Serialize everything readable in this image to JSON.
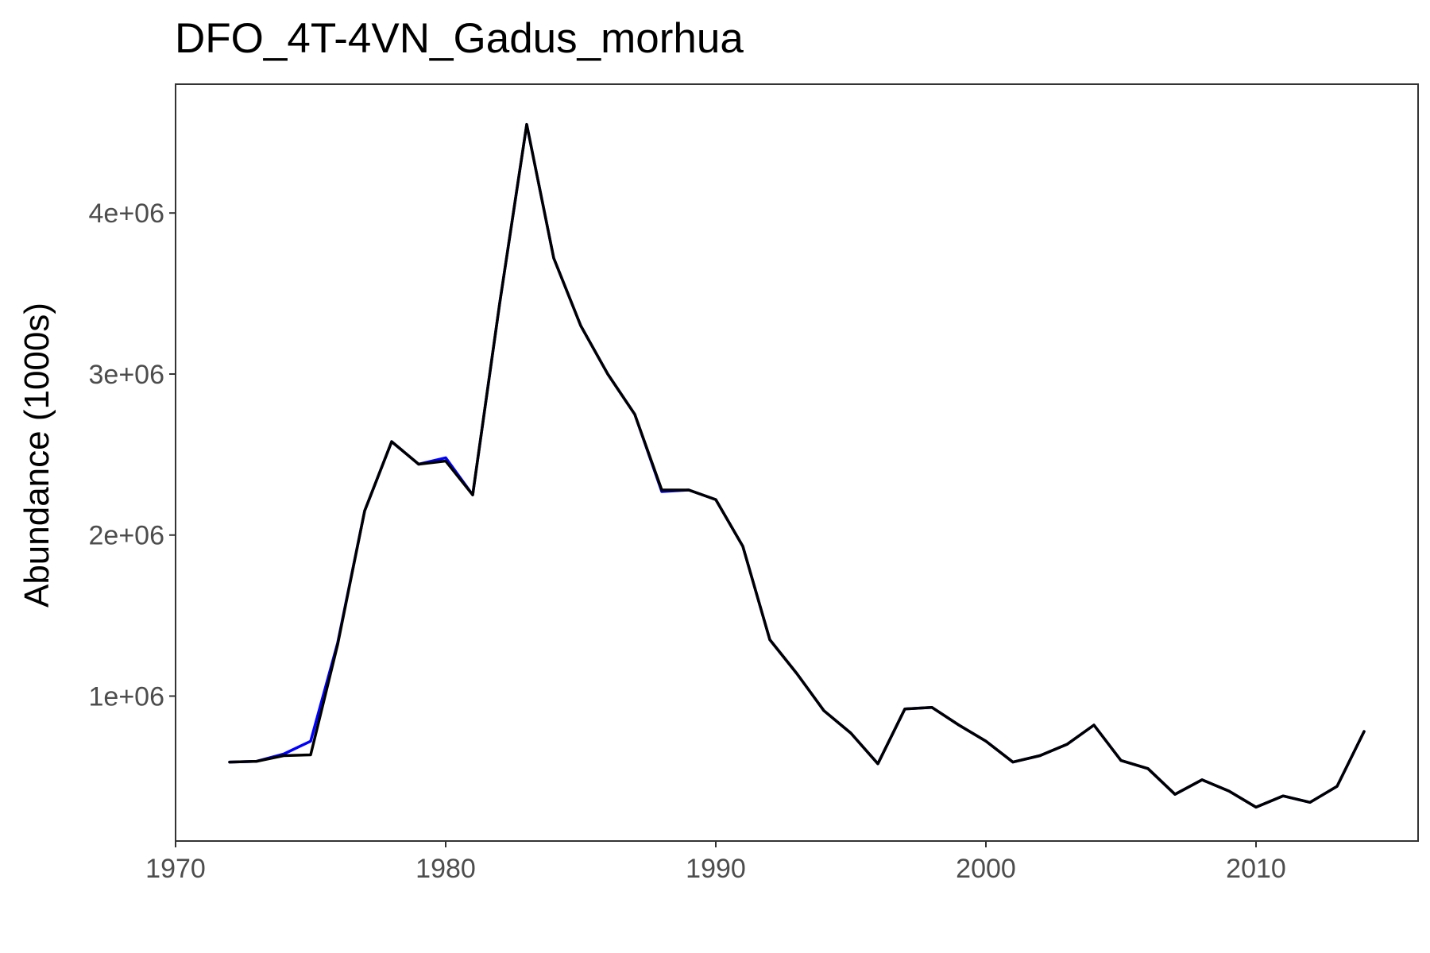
{
  "chart_data": {
    "type": "line",
    "title": "DFO_4T-4VN_Gadus_morhua",
    "xlabel": "",
    "ylabel": "Abundance (1000s)",
    "xlim": [
      1970,
      2016
    ],
    "ylim": [
      100000,
      4800000
    ],
    "x_ticks": [
      1970,
      1980,
      1990,
      2000,
      2010
    ],
    "y_ticks": [
      1000000,
      2000000,
      3000000,
      4000000
    ],
    "y_tick_labels": [
      "1e+06",
      "2e+06",
      "3e+06",
      "4e+06"
    ],
    "grid": false,
    "legend": "none",
    "x": [
      1972,
      1973,
      1974,
      1975,
      1976,
      1977,
      1978,
      1979,
      1980,
      1981,
      1982,
      1983,
      1984,
      1985,
      1986,
      1987,
      1988,
      1989,
      1990,
      1991,
      1992,
      1993,
      1994,
      1995,
      1996,
      1997,
      1998,
      1999,
      2000,
      2001,
      2002,
      2003,
      2004,
      2005,
      2006,
      2007,
      2008,
      2009,
      2010,
      2011,
      2012,
      2013,
      2014
    ],
    "series": [
      {
        "color": "#0000ff",
        "values": [
          590000,
          595000,
          640000,
          720000,
          1330000,
          2150000,
          2580000,
          2440000,
          2480000,
          2250000,
          3440000,
          4550000,
          3720000,
          3300000,
          3000000,
          2750000,
          2270000,
          2280000,
          2220000,
          1930000,
          1350000,
          1140000,
          910000,
          770000,
          580000,
          920000,
          930000,
          820000,
          720000,
          590000,
          630000,
          700000,
          820000,
          600000,
          550000,
          390000,
          480000,
          410000,
          310000,
          380000,
          340000,
          440000,
          780000
        ]
      },
      {
        "color": "#000000",
        "values": [
          590000,
          595000,
          630000,
          635000,
          1320000,
          2150000,
          2580000,
          2440000,
          2460000,
          2250000,
          3440000,
          4550000,
          3720000,
          3300000,
          3000000,
          2750000,
          2280000,
          2280000,
          2220000,
          1930000,
          1350000,
          1140000,
          910000,
          770000,
          580000,
          920000,
          930000,
          820000,
          720000,
          590000,
          630000,
          700000,
          820000,
          600000,
          550000,
          390000,
          480000,
          410000,
          310000,
          380000,
          340000,
          440000,
          780000
        ]
      }
    ]
  }
}
